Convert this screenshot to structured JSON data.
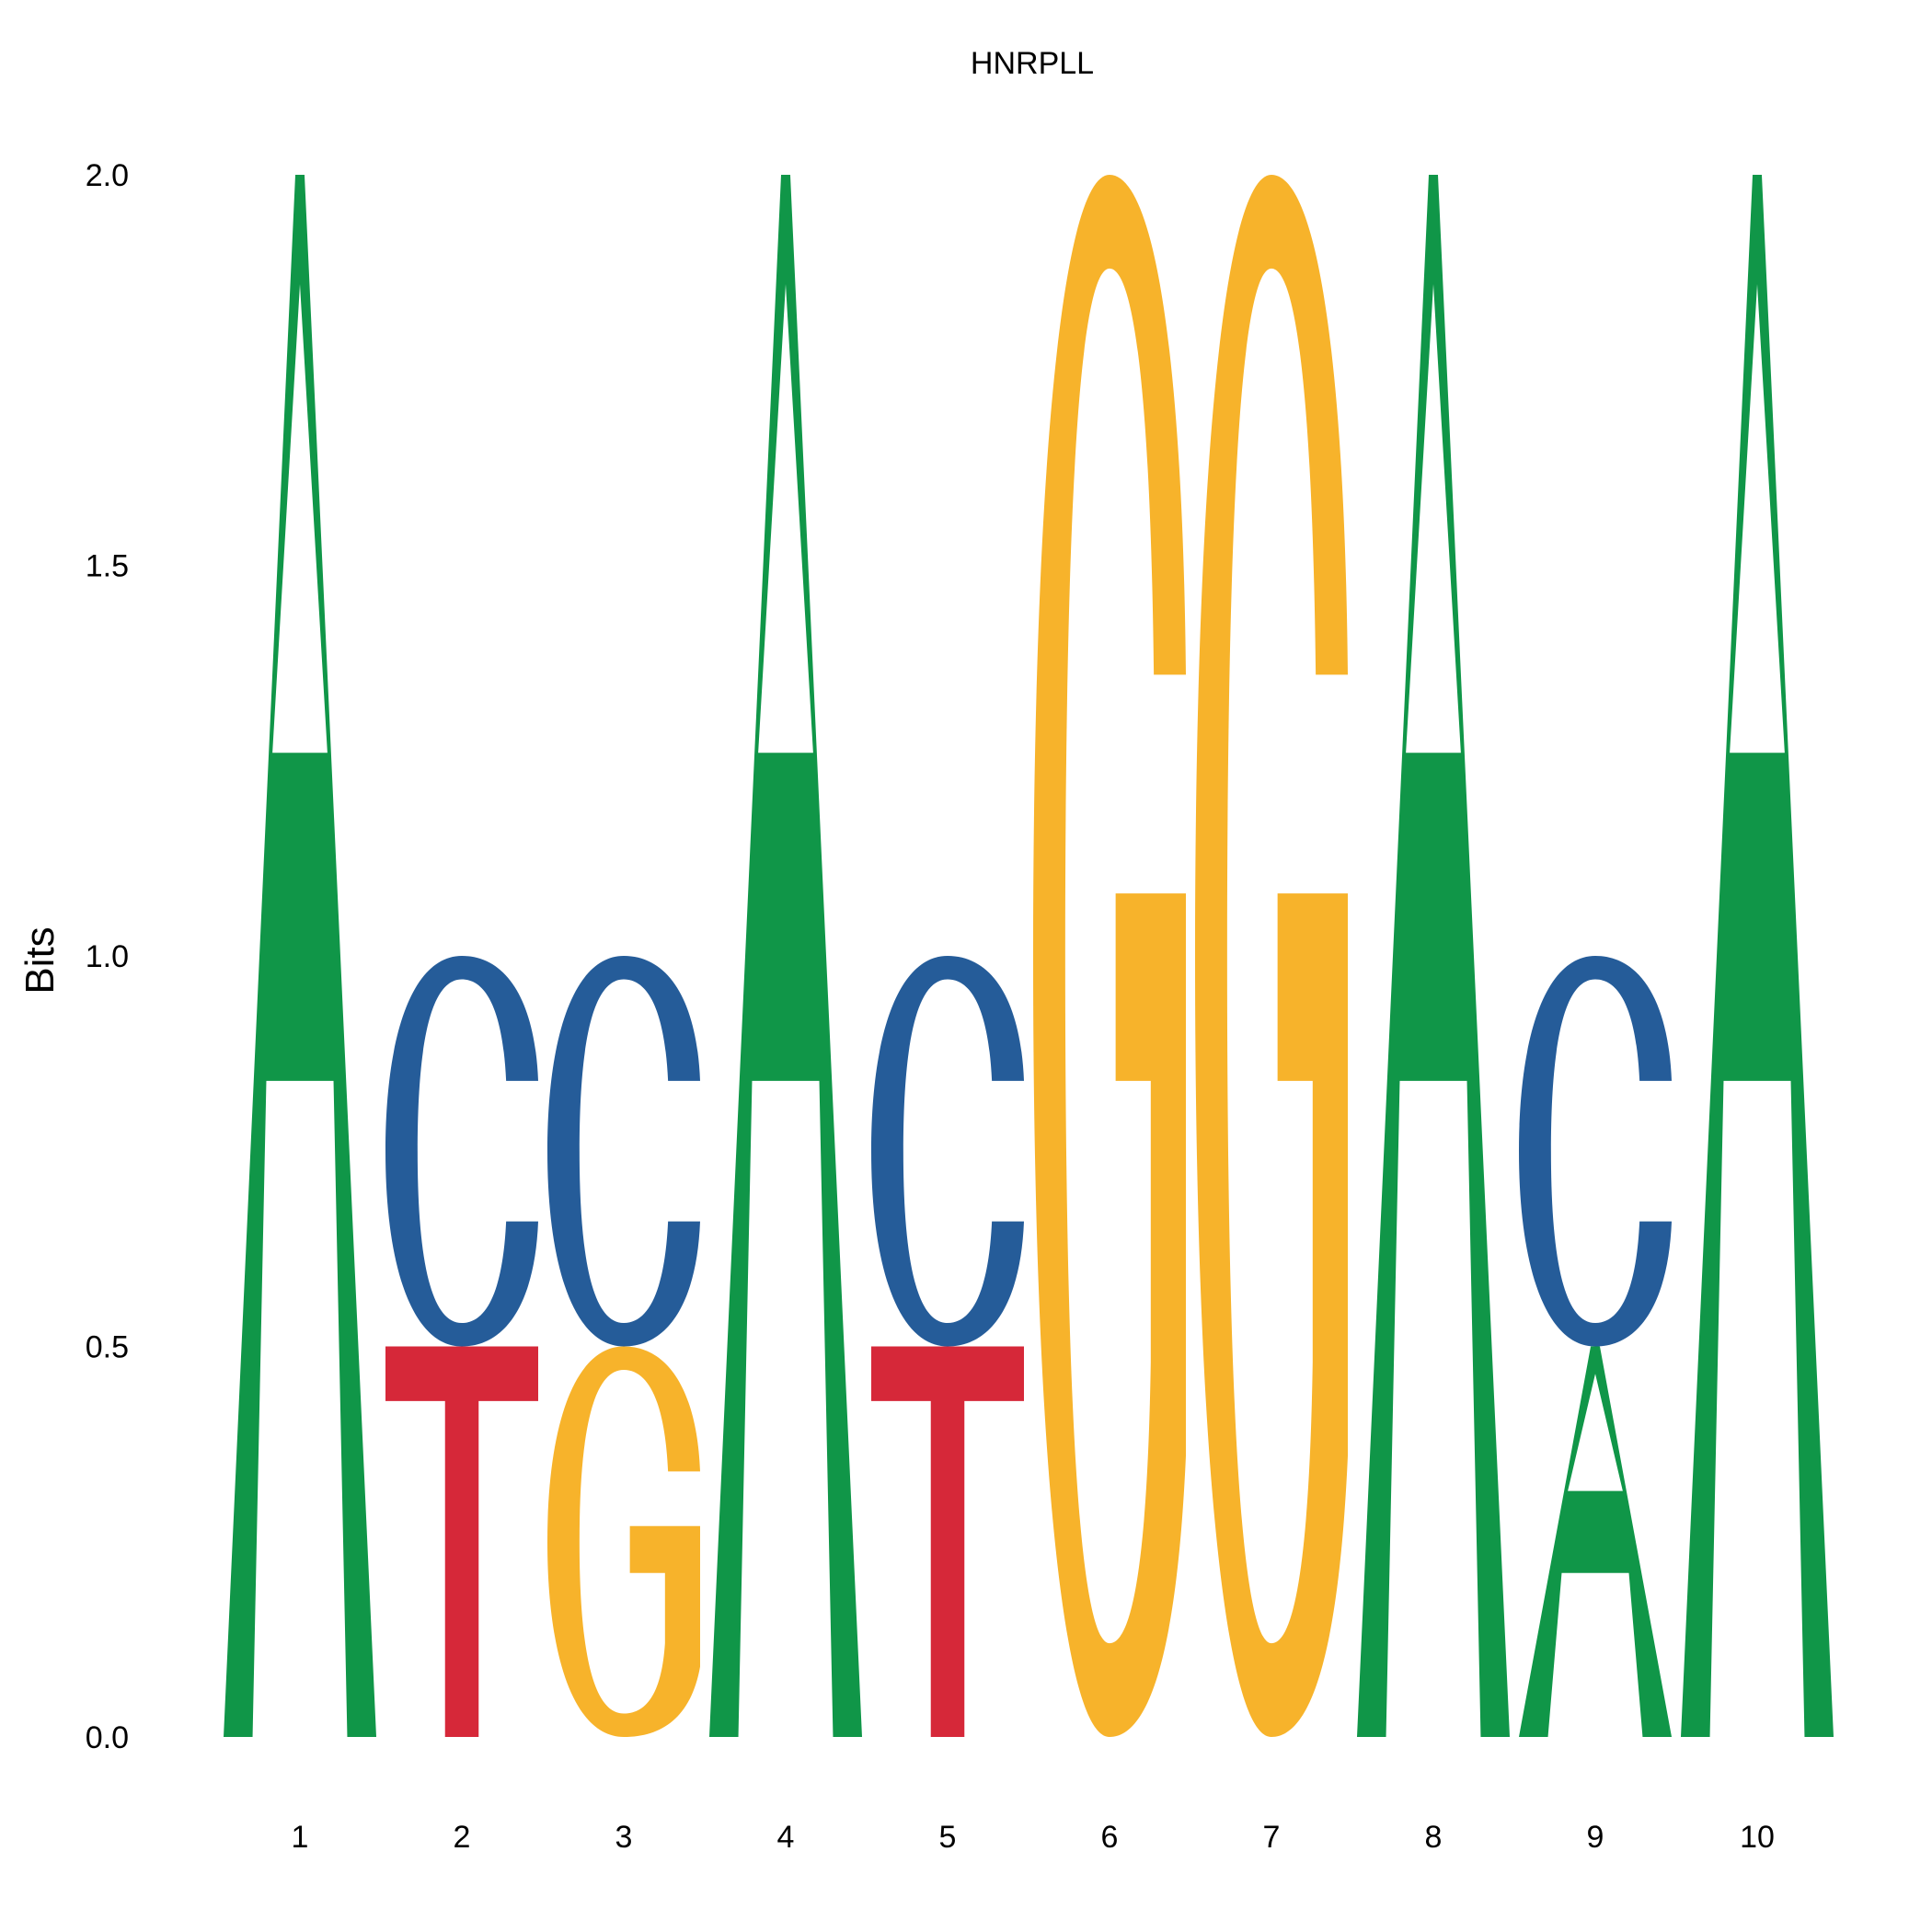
{
  "chart_data": {
    "type": "sequence-logo",
    "title": "HNRPLL",
    "ylabel": "Bits",
    "xlabel": "",
    "ylim": [
      0,
      2.0
    ],
    "yticks": [
      "0.0",
      "0.5",
      "1.0",
      "1.5",
      "2.0"
    ],
    "positions": [
      "1",
      "2",
      "3",
      "4",
      "5",
      "6",
      "7",
      "8",
      "9",
      "10"
    ],
    "colors": {
      "A": "#109648",
      "C": "#255C99",
      "G": "#F7B32B",
      "T": "#D62839"
    },
    "stacks": [
      [
        {
          "letter": "A",
          "bits": 2.0
        }
      ],
      [
        {
          "letter": "T",
          "bits": 0.5
        },
        {
          "letter": "C",
          "bits": 0.5
        }
      ],
      [
        {
          "letter": "G",
          "bits": 0.5
        },
        {
          "letter": "C",
          "bits": 0.5
        }
      ],
      [
        {
          "letter": "A",
          "bits": 2.0
        }
      ],
      [
        {
          "letter": "T",
          "bits": 0.5
        },
        {
          "letter": "C",
          "bits": 0.5
        }
      ],
      [
        {
          "letter": "G",
          "bits": 2.0
        }
      ],
      [
        {
          "letter": "G",
          "bits": 2.0
        }
      ],
      [
        {
          "letter": "A",
          "bits": 2.0
        }
      ],
      [
        {
          "letter": "A",
          "bits": 0.5
        },
        {
          "letter": "C",
          "bits": 0.5
        }
      ],
      [
        {
          "letter": "A",
          "bits": 2.0
        }
      ]
    ],
    "grid": false,
    "legend": "none"
  }
}
